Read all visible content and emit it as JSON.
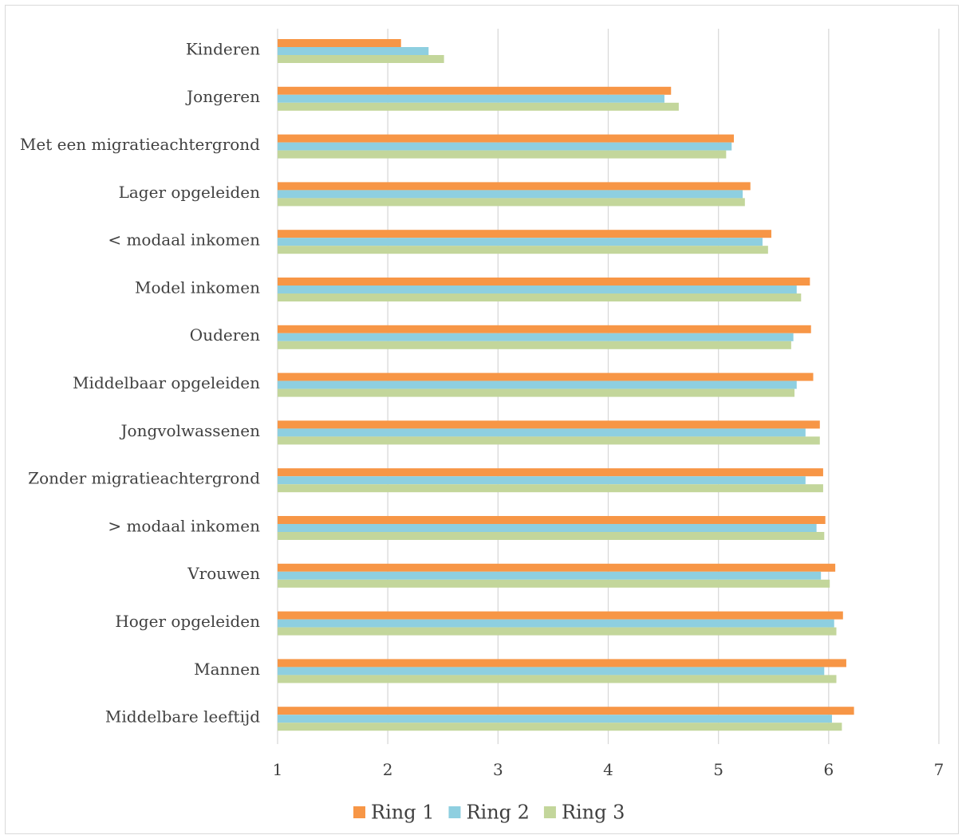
{
  "chart_data": {
    "type": "bar",
    "orientation": "horizontal",
    "title": "",
    "xlabel": "",
    "ylabel": "",
    "xlim": [
      1,
      7
    ],
    "x_ticks": [
      1,
      2,
      3,
      4,
      5,
      6,
      7
    ],
    "grid": true,
    "legend_position": "bottom",
    "categories": [
      "Kinderen",
      "Jongeren",
      "Met een migratieachtergrond",
      "Lager opgeleiden",
      "< modaal inkomen",
      "Model inkomen",
      "Ouderen",
      "Middelbaar opgeleiden",
      "Jongvolwassenen",
      "Zonder migratieachtergrond",
      "> modaal inkomen",
      "Vrouwen",
      "Hoger opgeleiden",
      "Mannen",
      "Middelbare leeftijd"
    ],
    "series": [
      {
        "name": "Ring 1",
        "color": "#f79646",
        "values": [
          2.12,
          4.57,
          5.14,
          5.29,
          5.48,
          5.83,
          5.84,
          5.86,
          5.92,
          5.95,
          5.97,
          6.06,
          6.13,
          6.16,
          6.23
        ]
      },
      {
        "name": "Ring 2",
        "color": "#8ecfe0",
        "values": [
          2.37,
          4.51,
          5.12,
          5.22,
          5.4,
          5.71,
          5.68,
          5.71,
          5.79,
          5.79,
          5.89,
          5.93,
          6.05,
          5.96,
          6.03
        ]
      },
      {
        "name": "Ring 3",
        "color": "#c3d69b",
        "values": [
          2.51,
          4.64,
          5.07,
          5.24,
          5.45,
          5.75,
          5.66,
          5.69,
          5.92,
          5.95,
          5.96,
          6.01,
          6.07,
          6.07,
          6.12
        ]
      }
    ]
  }
}
